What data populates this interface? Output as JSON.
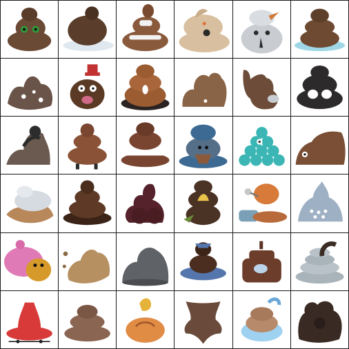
{
  "grid": {
    "rows": 6,
    "cols": 6,
    "background": "#ffffff",
    "line_color": "#1a1a1a"
  },
  "tiles": [
    {
      "subject": "poop-with-green-eyes",
      "body": "#6b4a35",
      "accent": "#2f9a3a"
    },
    {
      "subject": "round-poop-on-plate",
      "body": "#5a3e2b",
      "accent": "#dfe7ef"
    },
    {
      "subject": "poop-with-bone-bow",
      "body": "#8a5a3c",
      "accent": "#f2f2f2"
    },
    {
      "subject": "beige-dog-face-poop",
      "body": "#d8bf9f",
      "accent": "#2a2a2a"
    },
    {
      "subject": "gray-snowman-poop",
      "body": "#c9cdd2",
      "accent": "#d07a3a"
    },
    {
      "subject": "brown-swirl-on-ice",
      "body": "#6e4a32",
      "accent": "#9fd7e6"
    },
    {
      "subject": "spotted-poop-blob",
      "body": "#6a5348",
      "accent": "#ffffff"
    },
    {
      "subject": "poop-with-red-hat",
      "body": "#5a3a24",
      "accent": "#c23232"
    },
    {
      "subject": "honey-swirl-with-eye",
      "body": "#9b5c32",
      "accent": "#ffffff"
    },
    {
      "subject": "clay-poop-lump",
      "body": "#8a6446",
      "accent": "#ffffff"
    },
    {
      "subject": "reindeer-shaped-poop",
      "body": "#6d4d3a",
      "accent": "#c8cdd2"
    },
    {
      "subject": "dark-poop-with-eyes",
      "body": "#2d2a2c",
      "accent": "#ffffff"
    },
    {
      "subject": "swirly-gray-brown-poop",
      "body": "#6b5a50",
      "accent": "#2c2c2c"
    },
    {
      "subject": "brown-poop-with-legs",
      "body": "#8a5236",
      "accent": "#ffffff"
    },
    {
      "subject": "brown-poop-with-white-band",
      "body": "#7a4530",
      "accent": "#ffffff"
    },
    {
      "subject": "blue-hat-poop",
      "body": "#3d6a92",
      "accent": "#8a5a3a"
    },
    {
      "subject": "teal-bubble-poop",
      "body": "#3bb6b4",
      "accent": "#2a2a2a"
    },
    {
      "subject": "brown-loaf-poop",
      "body": "#7a4f36",
      "accent": "#ffffff"
    },
    {
      "subject": "white-cream-on-brown",
      "body": "#d6dbe1",
      "accent": "#b8875a"
    },
    {
      "subject": "dark-brown-swirl",
      "body": "#5e3a26",
      "accent": "#3b2417"
    },
    {
      "subject": "maroon-poop-shape",
      "body": "#55222c",
      "accent": "#4a1d22"
    },
    {
      "subject": "poop-with-banana",
      "body": "#4a3224",
      "accent": "#e7c34a"
    },
    {
      "subject": "orange-poop-on-blue-base",
      "body": "#d77a3a",
      "accent": "#7aa0b8"
    },
    {
      "subject": "blue-gray-mountain-poop",
      "body": "#9eb0c3",
      "accent": "#ffffff"
    },
    {
      "subject": "pink-bird-with-dog",
      "body": "#e07ab6",
      "accent": "#d69a2a"
    },
    {
      "subject": "beige-blob",
      "body": "#b79061",
      "accent": "#8a6a44"
    },
    {
      "subject": "gray-blob",
      "body": "#5f6266",
      "accent": "#4a4c50"
    },
    {
      "subject": "blue-base-brown-poop",
      "body": "#4b2e1f",
      "accent": "#5575ad"
    },
    {
      "subject": "brown-jar-poop",
      "body": "#6b3d2a",
      "accent": "#bcd3ea"
    },
    {
      "subject": "silver-coil-poop",
      "body": "#a9b3ba",
      "accent": "#3a2c24"
    },
    {
      "subject": "red-rubber-poop",
      "body": "#d83a3a",
      "accent": "#1f1f1f"
    },
    {
      "subject": "classic-brown-poop",
      "body": "#8a6552",
      "accent": "#6e4e3e"
    },
    {
      "subject": "golden-poop-on-orange-base",
      "body": "#e6b33a",
      "accent": "#e08c45"
    },
    {
      "subject": "brown-cross-shape",
      "body": "#6a4a3a",
      "accent": "#5a3c2e"
    },
    {
      "subject": "blue-tub-poop",
      "body": "#9fd1f0",
      "accent": "#b68a6b"
    },
    {
      "subject": "dark-brown-splotch",
      "body": "#3a2a24",
      "accent": "#2a1e1a"
    }
  ]
}
